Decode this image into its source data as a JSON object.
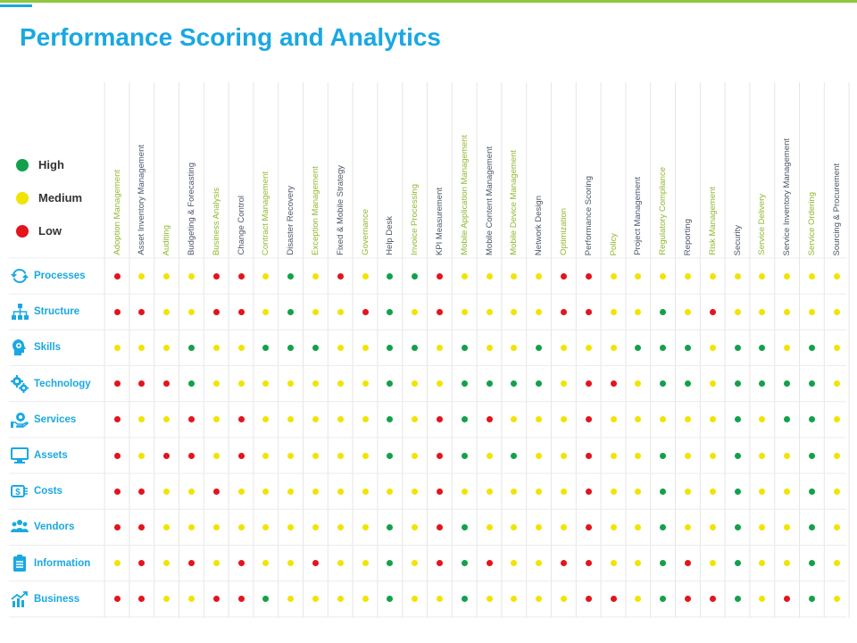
{
  "title": "Performance Scoring and Analytics",
  "colors": {
    "high": "#12a14a",
    "medium": "#f2e400",
    "low": "#e3141c",
    "accent": "#1aa8e2",
    "green_label": "#8fb82e",
    "dark_label": "#4a5568"
  },
  "legend": [
    {
      "key": "H",
      "label": "High"
    },
    {
      "key": "M",
      "label": "Medium"
    },
    {
      "key": "L",
      "label": "Low"
    }
  ],
  "columns": [
    {
      "label": "Adoption Management",
      "tone": "green"
    },
    {
      "label": "Asset Inventory Management",
      "tone": "dark"
    },
    {
      "label": "Auditing",
      "tone": "green"
    },
    {
      "label": "Budgeting & Forecasting",
      "tone": "dark"
    },
    {
      "label": "Business Analysis",
      "tone": "green"
    },
    {
      "label": "Change Control",
      "tone": "dark"
    },
    {
      "label": "Contract Management",
      "tone": "green"
    },
    {
      "label": "Disaster Recovery",
      "tone": "dark"
    },
    {
      "label": "Exception Management",
      "tone": "green"
    },
    {
      "label": "Fixed & Mobile Strategy",
      "tone": "dark"
    },
    {
      "label": "Governance",
      "tone": "green"
    },
    {
      "label": "Help Desk",
      "tone": "dark"
    },
    {
      "label": "Invoice Processing",
      "tone": "green"
    },
    {
      "label": "KPI Measurement",
      "tone": "dark"
    },
    {
      "label": "Mobile Application Management",
      "tone": "green"
    },
    {
      "label": "Mobile Content Management",
      "tone": "dark"
    },
    {
      "label": "Mobile Device Management",
      "tone": "green"
    },
    {
      "label": "Network Design",
      "tone": "dark"
    },
    {
      "label": "Optimization",
      "tone": "green"
    },
    {
      "label": "Performance Scoring",
      "tone": "dark"
    },
    {
      "label": "Policy",
      "tone": "green"
    },
    {
      "label": "Project Management",
      "tone": "dark"
    },
    {
      "label": "Regulatory Compliance",
      "tone": "green"
    },
    {
      "label": "Reporting",
      "tone": "dark"
    },
    {
      "label": "Risk Management",
      "tone": "green"
    },
    {
      "label": "Security",
      "tone": "dark"
    },
    {
      "label": "Service Delivery",
      "tone": "green"
    },
    {
      "label": "Service Inventory Management",
      "tone": "dark"
    },
    {
      "label": "Service Ordering",
      "tone": "green"
    },
    {
      "label": "Sourcing & Procurement",
      "tone": "dark"
    }
  ],
  "rows": [
    {
      "label": "Processes",
      "icon": "refresh-icon",
      "ratings": "LMMMLLMHMLMHHLMMMMLLMMMMMMMMMM"
    },
    {
      "label": "Structure",
      "icon": "org-chart-icon",
      "ratings": "LLMMLLMHMMLHMLMMMMLLMMHMLMMMMM"
    },
    {
      "label": "Skills",
      "icon": "brain-head-icon",
      "ratings": "MMMHMMHHHMMHHMHMMHMMMHHHMHHMHM"
    },
    {
      "label": "Technology",
      "icon": "gears-icon",
      "ratings": "LLLHMMMMMMMHMMHHHHMLLMHHMHHHHM"
    },
    {
      "label": "Services",
      "icon": "hand-gear-icon",
      "ratings": "LMMLMLMMMMMHMLHLMMMLMMMMMHMHHM"
    },
    {
      "label": "Assets",
      "icon": "monitor-icon",
      "ratings": "LMLLMLMMMMMHMLHMHMMLMMHMMHMMHM"
    },
    {
      "label": "Costs",
      "icon": "money-icon",
      "ratings": "LLMMLMMMMMMMMLMMMMMLMMHMMHMMHM"
    },
    {
      "label": "Vendors",
      "icon": "people-icon",
      "ratings": "LLMMMMMMMMMHMLHMMMMLMMHMMHMMHM"
    },
    {
      "label": "Information",
      "icon": "clipboard-icon",
      "ratings": "MLMLMLMMLMMHMLHLMMLLMMHLMHMMHM"
    },
    {
      "label": "Business",
      "icon": "growth-chart-icon",
      "ratings": "LLMMLLHMMMMHMMHMMMMLLMHLLHMLHM"
    }
  ]
}
